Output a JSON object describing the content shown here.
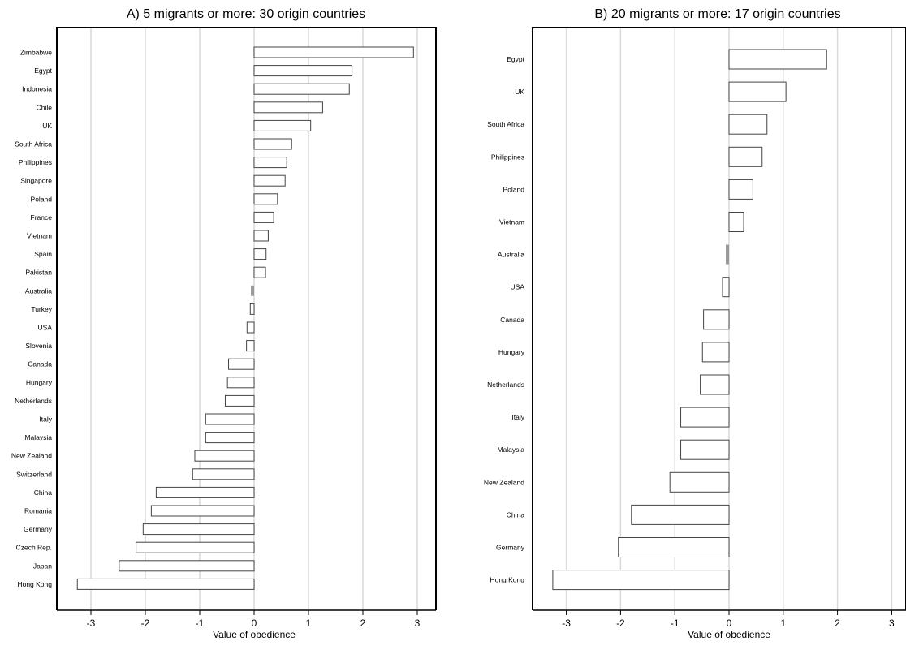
{
  "chart_data": [
    {
      "type": "bar",
      "orientation": "horizontal",
      "title": "A) 5 migrants or more: 30 origin countries",
      "xlabel": "Value of obedience",
      "ylabel": "",
      "xlim": [
        -3.6,
        3.35
      ],
      "xticks": [
        -3,
        -2,
        -1,
        0,
        1,
        2,
        3
      ],
      "xtick_labels": [
        "-3",
        "-2",
        "-1",
        "0",
        "1",
        "2",
        "3"
      ],
      "grid": "vertical",
      "reference_category": "Australia",
      "categories": [
        "Zimbabwe",
        "Egypt",
        "Indonesia",
        "Chile",
        "UK",
        "South Africa",
        "Philippines",
        "Singapore",
        "Poland",
        "France",
        "Vietnam",
        "Spain",
        "Pakistan",
        "Australia",
        "Turkey",
        "USA",
        "Slovenia",
        "Canada",
        "Hungary",
        "Netherlands",
        "Italy",
        "Malaysia",
        "New Zealand",
        "Switzerland",
        "China",
        "Romania",
        "Germany",
        "Czech Rep.",
        "Japan",
        "Hong Kong"
      ],
      "values": [
        2.93,
        1.8,
        1.75,
        1.26,
        1.04,
        0.69,
        0.6,
        0.57,
        0.43,
        0.36,
        0.26,
        0.22,
        0.21,
        0,
        -0.07,
        -0.13,
        -0.14,
        -0.47,
        -0.49,
        -0.53,
        -0.89,
        -0.89,
        -1.09,
        -1.13,
        -1.8,
        -1.89,
        -2.04,
        -2.17,
        -2.48,
        -3.25
      ],
      "colors": {
        "bar_fill": "#ffffff",
        "bar_stroke": "#444444",
        "reference_fill": "#999999",
        "grid": "#d9d9d9"
      }
    },
    {
      "type": "bar",
      "orientation": "horizontal",
      "title": "B) 20 migrants or more: 17 origin countries",
      "xlabel": "Value of obedience",
      "ylabel": "",
      "xlim": [
        -3.6,
        3.35
      ],
      "xticks": [
        -3,
        -2,
        -1,
        0,
        1,
        2,
        3
      ],
      "xtick_labels": [
        "-3",
        "-2",
        "-1",
        "0",
        "1",
        "2",
        "3"
      ],
      "grid": "vertical",
      "reference_category": "Australia",
      "categories": [
        "Egypt",
        "UK",
        "South Africa",
        "Philippines",
        "Poland",
        "Vietnam",
        "Australia",
        "USA",
        "Canada",
        "Hungary",
        "Netherlands",
        "Italy",
        "Malaysia",
        "New Zealand",
        "China",
        "Germany",
        "Hong Kong"
      ],
      "values": [
        1.8,
        1.05,
        0.7,
        0.61,
        0.44,
        0.27,
        0,
        -0.12,
        -0.47,
        -0.49,
        -0.53,
        -0.89,
        -0.89,
        -1.09,
        -1.8,
        -2.04,
        -3.25
      ],
      "colors": {
        "bar_fill": "#ffffff",
        "bar_stroke": "#444444",
        "reference_fill": "#999999",
        "grid": "#d9d9d9"
      }
    }
  ]
}
